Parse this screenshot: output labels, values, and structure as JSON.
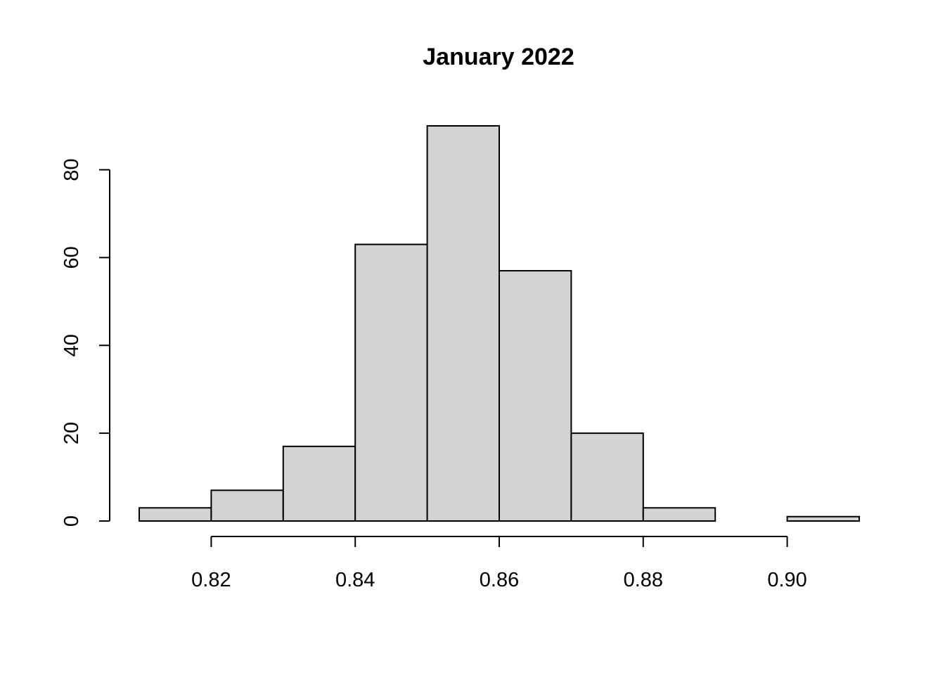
{
  "chart_data": {
    "type": "bar",
    "subtype": "histogram",
    "title": "January 2022",
    "xlabel": "",
    "ylabel": "",
    "bins": [
      {
        "start": 0.81,
        "end": 0.82,
        "count": 3
      },
      {
        "start": 0.82,
        "end": 0.83,
        "count": 7
      },
      {
        "start": 0.83,
        "end": 0.84,
        "count": 17
      },
      {
        "start": 0.84,
        "end": 0.85,
        "count": 63
      },
      {
        "start": 0.85,
        "end": 0.86,
        "count": 90
      },
      {
        "start": 0.86,
        "end": 0.87,
        "count": 57
      },
      {
        "start": 0.87,
        "end": 0.88,
        "count": 20
      },
      {
        "start": 0.88,
        "end": 0.89,
        "count": 3
      },
      {
        "start": 0.89,
        "end": 0.9,
        "count": 0
      },
      {
        "start": 0.9,
        "end": 0.91,
        "count": 1
      }
    ],
    "x_ticks": [
      "0.82",
      "0.84",
      "0.86",
      "0.88",
      "0.90"
    ],
    "y_ticks": [
      "0",
      "20",
      "40",
      "60",
      "80"
    ],
    "xlim": [
      0.81,
      0.91
    ],
    "ylim": [
      0,
      90
    ],
    "bar_fill": "#d3d3d3",
    "bar_stroke": "#000000",
    "grid": false,
    "legend": "none"
  }
}
